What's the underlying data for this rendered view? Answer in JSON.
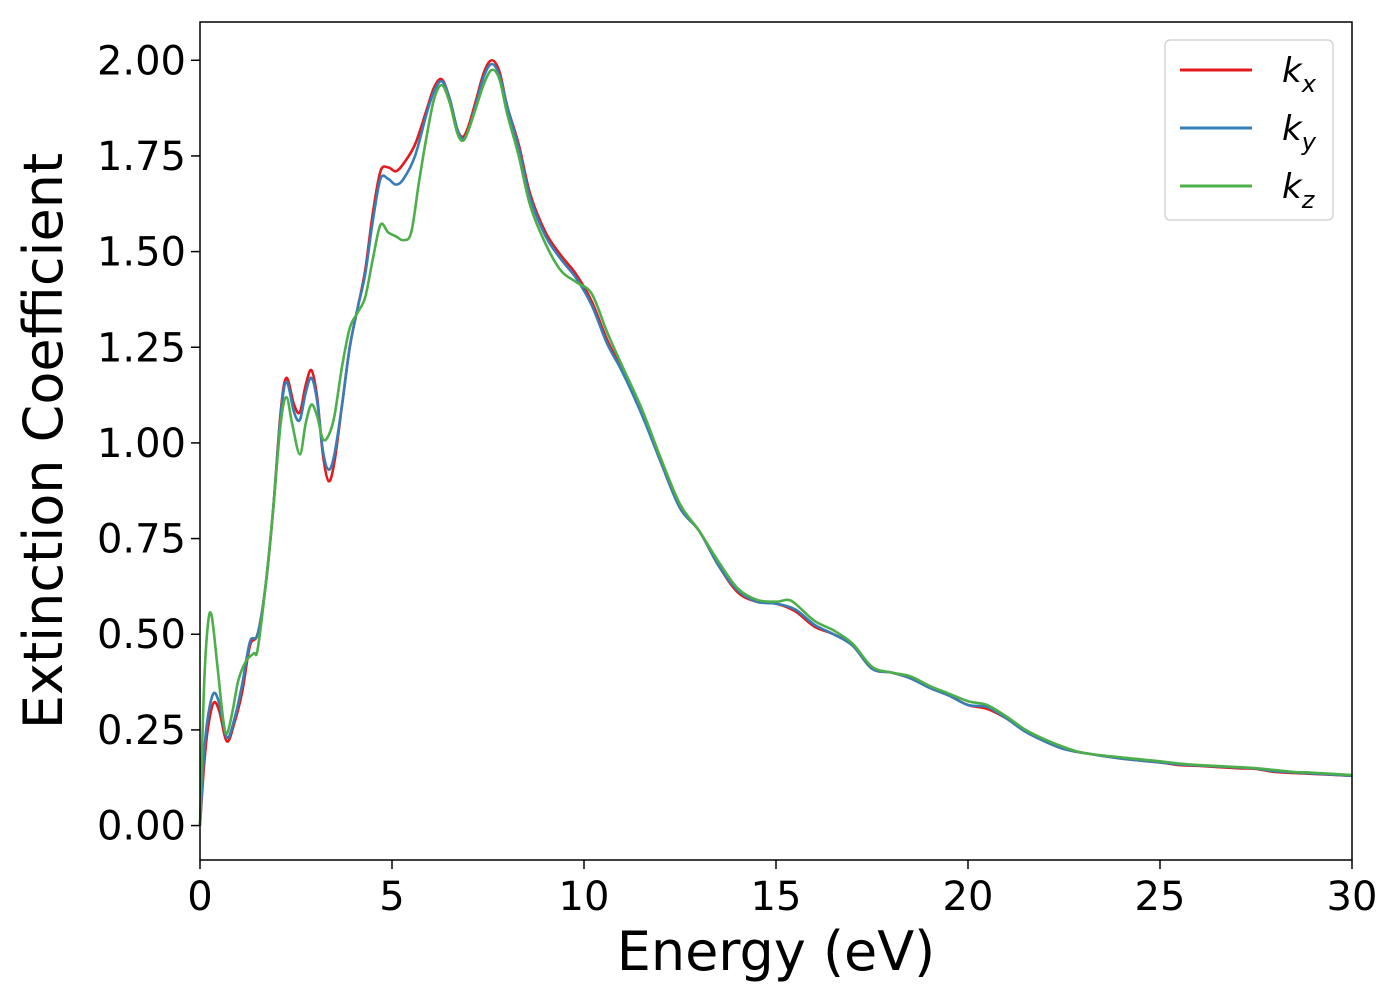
{
  "chart_data": {
    "type": "line",
    "title": "",
    "xlabel": "Energy (eV)",
    "ylabel": "Extinction Coefficient",
    "xlim": [
      0,
      30
    ],
    "ylim": [
      -0.09,
      2.1
    ],
    "xticks": [
      0,
      5,
      10,
      15,
      20,
      25,
      30
    ],
    "yticks": [
      0.0,
      0.25,
      0.5,
      0.75,
      1.0,
      1.25,
      1.5,
      1.75,
      2.0
    ],
    "xtick_labels": [
      "0",
      "5",
      "10",
      "15",
      "20",
      "25",
      "30"
    ],
    "ytick_labels": [
      "0.00",
      "0.25",
      "0.50",
      "0.75",
      "1.00",
      "1.25",
      "1.50",
      "1.75",
      "2.00"
    ],
    "grid": false,
    "legend_position": "top-right",
    "series": [
      {
        "name": "k_x",
        "legend_main": "k",
        "legend_sub": "x",
        "color": "#e41a1c",
        "points": [
          [
            0,
            0.0
          ],
          [
            0.1,
            0.15
          ],
          [
            0.2,
            0.25
          ],
          [
            0.35,
            0.32
          ],
          [
            0.5,
            0.3
          ],
          [
            0.7,
            0.22
          ],
          [
            0.9,
            0.27
          ],
          [
            1.1,
            0.35
          ],
          [
            1.3,
            0.47
          ],
          [
            1.5,
            0.5
          ],
          [
            1.7,
            0.62
          ],
          [
            1.9,
            0.82
          ],
          [
            2.1,
            1.08
          ],
          [
            2.25,
            1.17
          ],
          [
            2.45,
            1.1
          ],
          [
            2.6,
            1.08
          ],
          [
            2.75,
            1.15
          ],
          [
            2.9,
            1.19
          ],
          [
            3.05,
            1.12
          ],
          [
            3.2,
            0.97
          ],
          [
            3.35,
            0.9
          ],
          [
            3.5,
            0.95
          ],
          [
            3.7,
            1.1
          ],
          [
            3.9,
            1.25
          ],
          [
            4.1,
            1.35
          ],
          [
            4.3,
            1.45
          ],
          [
            4.5,
            1.6
          ],
          [
            4.7,
            1.71
          ],
          [
            4.9,
            1.72
          ],
          [
            5.1,
            1.71
          ],
          [
            5.3,
            1.73
          ],
          [
            5.6,
            1.78
          ],
          [
            5.9,
            1.87
          ],
          [
            6.1,
            1.93
          ],
          [
            6.3,
            1.95
          ],
          [
            6.5,
            1.9
          ],
          [
            6.7,
            1.82
          ],
          [
            6.85,
            1.8
          ],
          [
            7.0,
            1.83
          ],
          [
            7.2,
            1.9
          ],
          [
            7.4,
            1.97
          ],
          [
            7.6,
            2.0
          ],
          [
            7.8,
            1.97
          ],
          [
            8.0,
            1.88
          ],
          [
            8.3,
            1.78
          ],
          [
            8.6,
            1.65
          ],
          [
            9.0,
            1.55
          ],
          [
            9.4,
            1.49
          ],
          [
            9.8,
            1.44
          ],
          [
            10.2,
            1.37
          ],
          [
            10.6,
            1.27
          ],
          [
            11.0,
            1.19
          ],
          [
            11.5,
            1.08
          ],
          [
            12.0,
            0.95
          ],
          [
            12.5,
            0.83
          ],
          [
            13.0,
            0.77
          ],
          [
            13.5,
            0.68
          ],
          [
            14.0,
            0.61
          ],
          [
            14.5,
            0.585
          ],
          [
            15.0,
            0.58
          ],
          [
            15.5,
            0.56
          ],
          [
            16.0,
            0.52
          ],
          [
            16.5,
            0.5
          ],
          [
            17.0,
            0.47
          ],
          [
            17.5,
            0.41
          ],
          [
            18.0,
            0.4
          ],
          [
            18.5,
            0.385
          ],
          [
            19.0,
            0.36
          ],
          [
            19.5,
            0.34
          ],
          [
            20.0,
            0.315
          ],
          [
            20.5,
            0.305
          ],
          [
            21.0,
            0.28
          ],
          [
            21.5,
            0.245
          ],
          [
            22.0,
            0.22
          ],
          [
            22.5,
            0.2
          ],
          [
            23.0,
            0.19
          ],
          [
            24.0,
            0.175
          ],
          [
            25.0,
            0.165
          ],
          [
            25.5,
            0.158
          ],
          [
            26.0,
            0.156
          ],
          [
            27.0,
            0.15
          ],
          [
            27.5,
            0.148
          ],
          [
            28.0,
            0.14
          ],
          [
            29.0,
            0.135
          ],
          [
            30.0,
            0.13
          ]
        ]
      },
      {
        "name": "k_y",
        "legend_main": "k",
        "legend_sub": "y",
        "color": "#377eb8",
        "points": [
          [
            0,
            0.0
          ],
          [
            0.1,
            0.18
          ],
          [
            0.2,
            0.28
          ],
          [
            0.35,
            0.345
          ],
          [
            0.5,
            0.32
          ],
          [
            0.7,
            0.23
          ],
          [
            0.9,
            0.28
          ],
          [
            1.1,
            0.37
          ],
          [
            1.3,
            0.48
          ],
          [
            1.5,
            0.5
          ],
          [
            1.7,
            0.62
          ],
          [
            1.9,
            0.82
          ],
          [
            2.1,
            1.07
          ],
          [
            2.25,
            1.16
          ],
          [
            2.45,
            1.08
          ],
          [
            2.6,
            1.06
          ],
          [
            2.75,
            1.13
          ],
          [
            2.9,
            1.17
          ],
          [
            3.05,
            1.11
          ],
          [
            3.2,
            0.98
          ],
          [
            3.35,
            0.93
          ],
          [
            3.5,
            0.97
          ],
          [
            3.7,
            1.1
          ],
          [
            3.9,
            1.25
          ],
          [
            4.1,
            1.35
          ],
          [
            4.3,
            1.44
          ],
          [
            4.5,
            1.58
          ],
          [
            4.7,
            1.69
          ],
          [
            4.9,
            1.69
          ],
          [
            5.1,
            1.675
          ],
          [
            5.3,
            1.69
          ],
          [
            5.6,
            1.75
          ],
          [
            5.9,
            1.86
          ],
          [
            6.1,
            1.92
          ],
          [
            6.3,
            1.945
          ],
          [
            6.5,
            1.9
          ],
          [
            6.7,
            1.82
          ],
          [
            6.85,
            1.795
          ],
          [
            7.0,
            1.82
          ],
          [
            7.2,
            1.89
          ],
          [
            7.4,
            1.96
          ],
          [
            7.6,
            1.99
          ],
          [
            7.8,
            1.96
          ],
          [
            8.0,
            1.88
          ],
          [
            8.3,
            1.77
          ],
          [
            8.6,
            1.64
          ],
          [
            9.0,
            1.54
          ],
          [
            9.4,
            1.48
          ],
          [
            9.8,
            1.43
          ],
          [
            10.2,
            1.36
          ],
          [
            10.6,
            1.26
          ],
          [
            11.0,
            1.185
          ],
          [
            11.5,
            1.075
          ],
          [
            12.0,
            0.95
          ],
          [
            12.5,
            0.83
          ],
          [
            13.0,
            0.77
          ],
          [
            13.5,
            0.68
          ],
          [
            14.0,
            0.615
          ],
          [
            14.5,
            0.585
          ],
          [
            15.0,
            0.58
          ],
          [
            15.5,
            0.565
          ],
          [
            16.0,
            0.525
          ],
          [
            16.5,
            0.5
          ],
          [
            17.0,
            0.47
          ],
          [
            17.5,
            0.41
          ],
          [
            18.0,
            0.4
          ],
          [
            18.5,
            0.385
          ],
          [
            19.0,
            0.36
          ],
          [
            19.5,
            0.34
          ],
          [
            20.0,
            0.315
          ],
          [
            20.5,
            0.31
          ],
          [
            21.0,
            0.28
          ],
          [
            21.5,
            0.245
          ],
          [
            22.0,
            0.22
          ],
          [
            22.5,
            0.2
          ],
          [
            23.0,
            0.19
          ],
          [
            24.0,
            0.175
          ],
          [
            25.0,
            0.165
          ],
          [
            25.5,
            0.16
          ],
          [
            26.0,
            0.157
          ],
          [
            27.0,
            0.152
          ],
          [
            27.5,
            0.149
          ],
          [
            28.0,
            0.142
          ],
          [
            29.0,
            0.136
          ],
          [
            30.0,
            0.13
          ]
        ]
      },
      {
        "name": "k_z",
        "legend_main": "k",
        "legend_sub": "z",
        "color": "#4daf4a",
        "points": [
          [
            0,
            0.0
          ],
          [
            0.1,
            0.35
          ],
          [
            0.2,
            0.52
          ],
          [
            0.3,
            0.55
          ],
          [
            0.45,
            0.42
          ],
          [
            0.6,
            0.28
          ],
          [
            0.7,
            0.24
          ],
          [
            0.85,
            0.3
          ],
          [
            1.0,
            0.38
          ],
          [
            1.2,
            0.43
          ],
          [
            1.4,
            0.45
          ],
          [
            1.5,
            0.46
          ],
          [
            1.7,
            0.62
          ],
          [
            1.9,
            0.82
          ],
          [
            2.1,
            1.05
          ],
          [
            2.25,
            1.12
          ],
          [
            2.4,
            1.05
          ],
          [
            2.6,
            0.97
          ],
          [
            2.75,
            1.05
          ],
          [
            2.9,
            1.1
          ],
          [
            3.05,
            1.07
          ],
          [
            3.2,
            1.01
          ],
          [
            3.35,
            1.02
          ],
          [
            3.5,
            1.07
          ],
          [
            3.7,
            1.2
          ],
          [
            3.9,
            1.3
          ],
          [
            4.1,
            1.34
          ],
          [
            4.3,
            1.38
          ],
          [
            4.5,
            1.48
          ],
          [
            4.7,
            1.57
          ],
          [
            4.9,
            1.55
          ],
          [
            5.1,
            1.54
          ],
          [
            5.3,
            1.53
          ],
          [
            5.5,
            1.55
          ],
          [
            5.7,
            1.68
          ],
          [
            5.9,
            1.8
          ],
          [
            6.1,
            1.9
          ],
          [
            6.3,
            1.935
          ],
          [
            6.5,
            1.89
          ],
          [
            6.7,
            1.81
          ],
          [
            6.85,
            1.79
          ],
          [
            7.0,
            1.82
          ],
          [
            7.2,
            1.88
          ],
          [
            7.4,
            1.94
          ],
          [
            7.6,
            1.975
          ],
          [
            7.8,
            1.95
          ],
          [
            8.0,
            1.86
          ],
          [
            8.3,
            1.75
          ],
          [
            8.6,
            1.62
          ],
          [
            9.0,
            1.52
          ],
          [
            9.4,
            1.45
          ],
          [
            9.8,
            1.42
          ],
          [
            10.2,
            1.39
          ],
          [
            10.6,
            1.29
          ],
          [
            11.0,
            1.2
          ],
          [
            11.5,
            1.09
          ],
          [
            12.0,
            0.96
          ],
          [
            12.5,
            0.84
          ],
          [
            13.0,
            0.77
          ],
          [
            13.5,
            0.69
          ],
          [
            14.0,
            0.62
          ],
          [
            14.5,
            0.59
          ],
          [
            15.0,
            0.585
          ],
          [
            15.3,
            0.59
          ],
          [
            15.5,
            0.58
          ],
          [
            16.0,
            0.535
          ],
          [
            16.5,
            0.51
          ],
          [
            17.0,
            0.475
          ],
          [
            17.5,
            0.415
          ],
          [
            18.0,
            0.4
          ],
          [
            18.5,
            0.39
          ],
          [
            19.0,
            0.365
          ],
          [
            19.5,
            0.345
          ],
          [
            20.0,
            0.325
          ],
          [
            20.5,
            0.315
          ],
          [
            21.0,
            0.285
          ],
          [
            21.5,
            0.25
          ],
          [
            22.0,
            0.225
          ],
          [
            22.5,
            0.205
          ],
          [
            23.0,
            0.19
          ],
          [
            24.0,
            0.178
          ],
          [
            25.0,
            0.168
          ],
          [
            25.5,
            0.162
          ],
          [
            26.0,
            0.158
          ],
          [
            27.0,
            0.153
          ],
          [
            27.5,
            0.15
          ],
          [
            28.0,
            0.145
          ],
          [
            28.5,
            0.14
          ],
          [
            29.0,
            0.138
          ],
          [
            30.0,
            0.132
          ]
        ]
      }
    ]
  }
}
